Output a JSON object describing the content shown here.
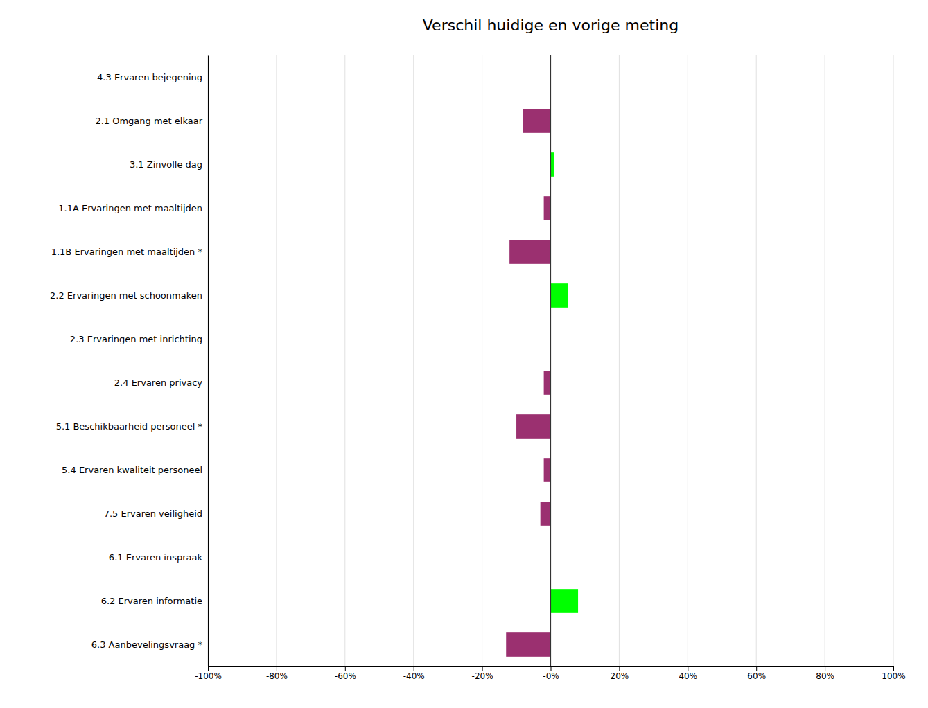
{
  "chart_data": {
    "type": "bar",
    "orientation": "horizontal",
    "title": "Verschil huidige en vorige meting",
    "categories": [
      "4.3 Ervaren bejegening",
      "2.1 Omgang met elkaar",
      "3.1 Zinvolle dag",
      "1.1A Ervaringen met maaltijden",
      "1.1B Ervaringen met maaltijden *",
      "2.2 Ervaringen met schoonmaken",
      "2.3 Ervaringen met inrichting",
      "2.4 Ervaren privacy",
      "5.1 Beschikbaarheid personeel *",
      "5.4 Ervaren kwaliteit personeel",
      "7.5 Ervaren veiligheid",
      "6.1 Ervaren inspraak",
      "6.2 Ervaren informatie",
      "6.3 Aanbevelingsvraag *"
    ],
    "values": [
      0,
      -8,
      1,
      -2,
      -12,
      5,
      0,
      -2,
      -10,
      -2,
      -3,
      0,
      8,
      -13
    ],
    "colors": [
      "#9b3070",
      "#9b3070",
      "#00ff00",
      "#9b3070",
      "#9b3070",
      "#00ff00",
      "#9b3070",
      "#9b3070",
      "#9b3070",
      "#9b3070",
      "#9b3070",
      "#9b3070",
      "#00ff00",
      "#9b3070"
    ],
    "xlim": [
      -100,
      100
    ],
    "xticks": [
      {
        "value": -100,
        "label": "-100%"
      },
      {
        "value": -80,
        "label": "-80%"
      },
      {
        "value": -60,
        "label": "-60%"
      },
      {
        "value": -40,
        "label": "-40%"
      },
      {
        "value": -20,
        "label": "-20%"
      },
      {
        "value": 0,
        "label": "-0%"
      },
      {
        "value": 20,
        "label": "20%"
      },
      {
        "value": 40,
        "label": "40%"
      },
      {
        "value": 60,
        "label": "60%"
      },
      {
        "value": 80,
        "label": "80%"
      },
      {
        "value": 100,
        "label": "100%"
      }
    ],
    "grid": true
  }
}
